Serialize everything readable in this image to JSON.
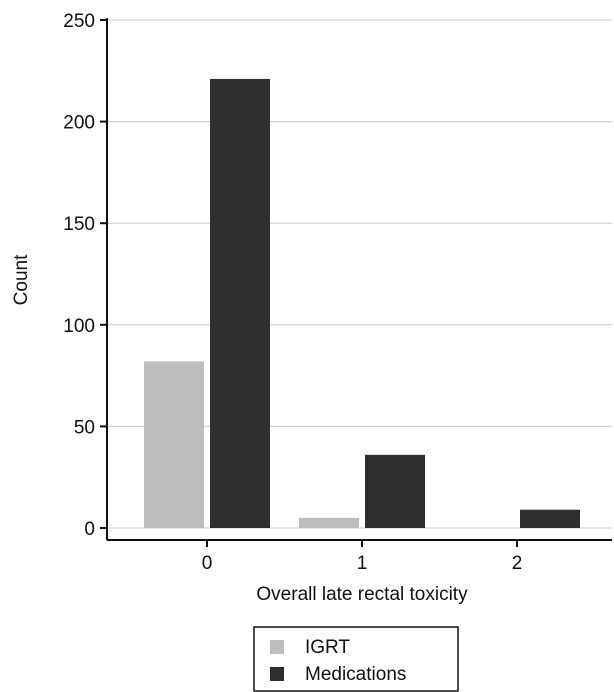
{
  "chart_data": {
    "type": "bar",
    "categories": [
      "0",
      "1",
      "2"
    ],
    "series": [
      {
        "name": "IGRT",
        "values": [
          82,
          5,
          0
        ],
        "color": "#bdbdbd"
      },
      {
        "name": "Medications",
        "values": [
          221,
          36,
          9
        ],
        "color": "#2f2f2f"
      }
    ],
    "xlabel": "Overall late rectal toxicity",
    "ylabel": "Count",
    "ylim": [
      0,
      250
    ],
    "yticks": [
      0,
      50,
      100,
      150,
      200,
      250
    ],
    "grid": true,
    "legend": "bottom-center"
  }
}
